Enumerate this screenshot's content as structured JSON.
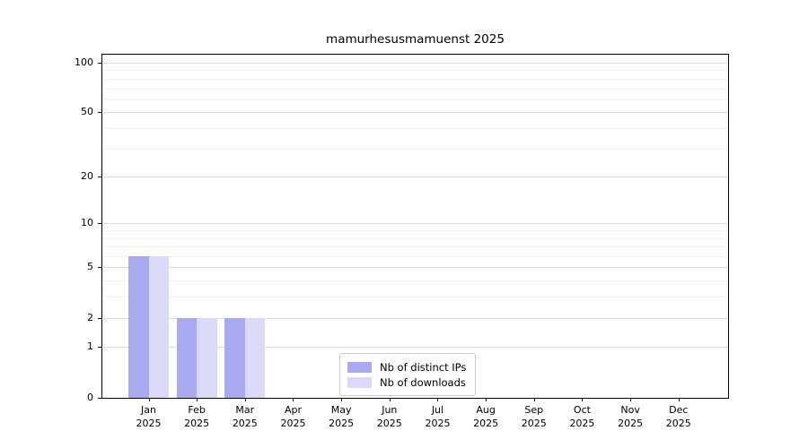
{
  "chart_data": {
    "type": "bar",
    "title": "mamurhesusmamuenst 2025",
    "categories": [
      "Jan 2025",
      "Feb 2025",
      "Mar 2025",
      "Apr 2025",
      "May 2025",
      "Jun 2025",
      "Jul 2025",
      "Aug 2025",
      "Sep 2025",
      "Oct 2025",
      "Nov 2025",
      "Dec 2025"
    ],
    "x_tick_months": [
      "Jan",
      "Feb",
      "Mar",
      "Apr",
      "May",
      "Jun",
      "Jul",
      "Aug",
      "Sep",
      "Oct",
      "Nov",
      "Dec"
    ],
    "x_tick_year": "2025",
    "series": [
      {
        "name": "Nb of distinct IPs",
        "color": "#a9a9f1",
        "values": [
          6,
          2,
          2,
          0,
          0,
          0,
          0,
          0,
          0,
          0,
          0,
          0
        ]
      },
      {
        "name": "Nb of downloads",
        "color": "#dadaf8",
        "values": [
          6,
          2,
          2,
          0,
          0,
          0,
          0,
          0,
          0,
          0,
          0,
          0
        ]
      }
    ],
    "y_axis": {
      "scale": "log10(1+value)",
      "min": 0,
      "max": 100,
      "major_ticks": [
        0,
        1,
        2,
        5,
        10,
        20,
        50,
        100
      ],
      "minor_gridlines": [
        3,
        4,
        6,
        7,
        8,
        9,
        30,
        40,
        60,
        70,
        80,
        90
      ]
    },
    "grid": true,
    "legend_position": "lower center"
  }
}
